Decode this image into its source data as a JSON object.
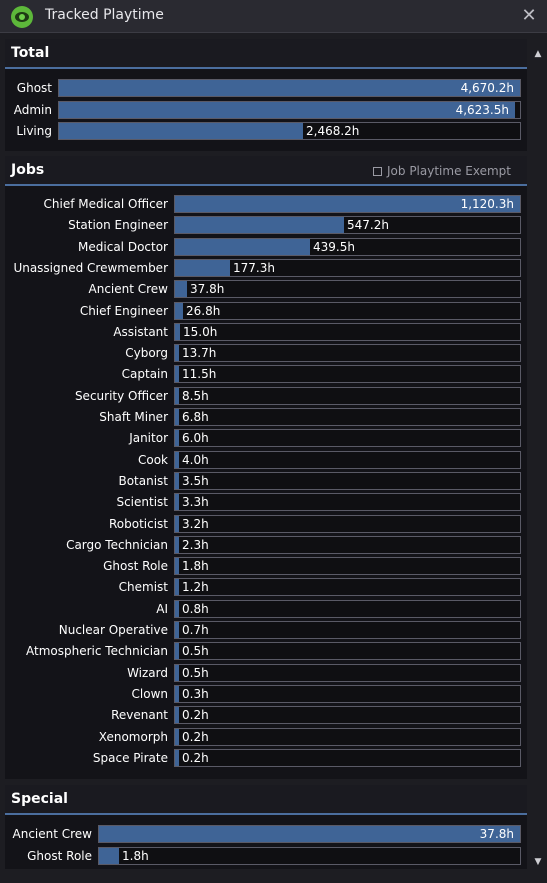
{
  "window": {
    "title": "Tracked Playtime",
    "icon": "eye-icon",
    "close": "✕"
  },
  "scrollbar": {
    "up": "▲",
    "down": "▼"
  },
  "colors": {
    "bar_fill": "#3f6496",
    "accent_line": "#4b6e9e",
    "icon_green": "#5db83a"
  },
  "total": {
    "title": "Total",
    "rows": [
      {
        "label": "Ghost",
        "value": "4,670.2h",
        "hours": 4670.2
      },
      {
        "label": "Admin",
        "value": "4,623.5h",
        "hours": 4623.5
      },
      {
        "label": "Living",
        "value": "2,468.2h",
        "hours": 2468.2
      }
    ]
  },
  "jobs": {
    "title": "Jobs",
    "exempt_label": "Job Playtime Exempt",
    "exempt_checked": false,
    "rows": [
      {
        "label": "Chief Medical Officer",
        "value": "1,120.3h",
        "hours": 1120.3
      },
      {
        "label": "Station Engineer",
        "value": "547.2h",
        "hours": 547.2
      },
      {
        "label": "Medical Doctor",
        "value": "439.5h",
        "hours": 439.5
      },
      {
        "label": "Unassigned Crewmember",
        "value": "177.3h",
        "hours": 177.3
      },
      {
        "label": "Ancient Crew",
        "value": "37.8h",
        "hours": 37.8
      },
      {
        "label": "Chief Engineer",
        "value": "26.8h",
        "hours": 26.8
      },
      {
        "label": "Assistant",
        "value": "15.0h",
        "hours": 15.0
      },
      {
        "label": "Cyborg",
        "value": "13.7h",
        "hours": 13.7
      },
      {
        "label": "Captain",
        "value": "11.5h",
        "hours": 11.5
      },
      {
        "label": "Security Officer",
        "value": "8.5h",
        "hours": 8.5
      },
      {
        "label": "Shaft Miner",
        "value": "6.8h",
        "hours": 6.8
      },
      {
        "label": "Janitor",
        "value": "6.0h",
        "hours": 6.0
      },
      {
        "label": "Cook",
        "value": "4.0h",
        "hours": 4.0
      },
      {
        "label": "Botanist",
        "value": "3.5h",
        "hours": 3.5
      },
      {
        "label": "Scientist",
        "value": "3.3h",
        "hours": 3.3
      },
      {
        "label": "Roboticist",
        "value": "3.2h",
        "hours": 3.2
      },
      {
        "label": "Cargo Technician",
        "value": "2.3h",
        "hours": 2.3
      },
      {
        "label": "Ghost Role",
        "value": "1.8h",
        "hours": 1.8
      },
      {
        "label": "Chemist",
        "value": "1.2h",
        "hours": 1.2
      },
      {
        "label": "AI",
        "value": "0.8h",
        "hours": 0.8
      },
      {
        "label": "Nuclear Operative",
        "value": "0.7h",
        "hours": 0.7
      },
      {
        "label": "Atmospheric Technician",
        "value": "0.5h",
        "hours": 0.5
      },
      {
        "label": "Wizard",
        "value": "0.5h",
        "hours": 0.5
      },
      {
        "label": "Clown",
        "value": "0.3h",
        "hours": 0.3
      },
      {
        "label": "Revenant",
        "value": "0.2h",
        "hours": 0.2
      },
      {
        "label": "Xenomorph",
        "value": "0.2h",
        "hours": 0.2
      },
      {
        "label": "Space Pirate",
        "value": "0.2h",
        "hours": 0.2
      }
    ]
  },
  "special": {
    "title": "Special",
    "rows": [
      {
        "label": "Ancient Crew",
        "value": "37.8h",
        "hours": 37.8
      },
      {
        "label": "Ghost Role",
        "value": "1.8h",
        "hours": 1.8
      }
    ]
  }
}
